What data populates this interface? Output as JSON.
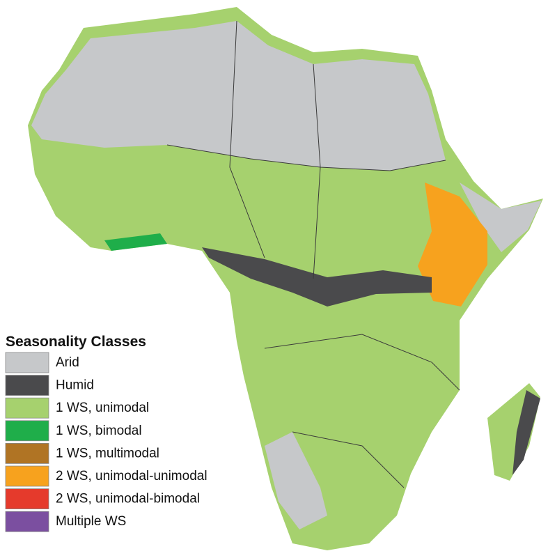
{
  "legend": {
    "title": "Seasonality Classes",
    "items": [
      {
        "label": "Arid",
        "color": "#c6c8ca"
      },
      {
        "label": "Humid",
        "color": "#4a4a4c"
      },
      {
        "label": "1 WS, unimodal",
        "color": "#a6d16e"
      },
      {
        "label": "1 WS, bimodal",
        "color": "#1fae4a"
      },
      {
        "label": "1 WS, multimodal",
        "color": "#b07424"
      },
      {
        "label": "2 WS, unimodal-unimodal",
        "color": "#f7a21e"
      },
      {
        "label": "2 WS, unimodal-bimodal",
        "color": "#e53a2c"
      },
      {
        "label": "Multiple WS",
        "color": "#7b4fa0"
      }
    ]
  }
}
